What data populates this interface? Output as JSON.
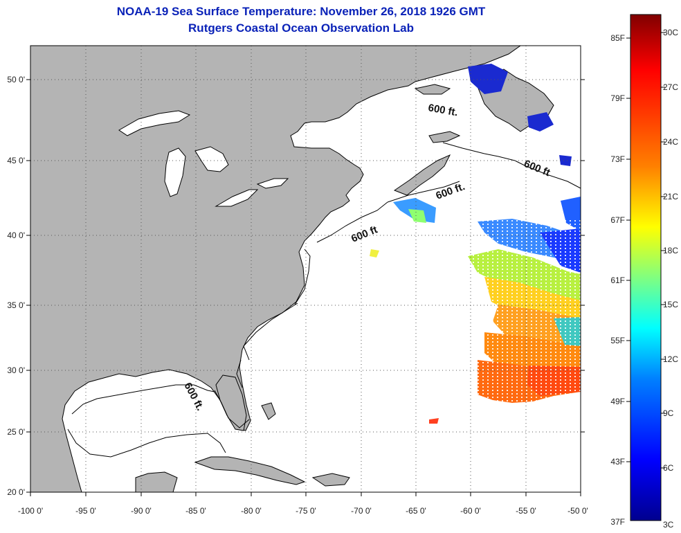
{
  "header": {
    "title": "NOAA-19 Sea Surface Temperature:  November 26, 2018 1926 GMT",
    "subtitle": "Rutgers Coastal Ocean Observation Lab"
  },
  "map": {
    "lon_ticks": [
      "-100 0'",
      "-95 0'",
      "-90 0'",
      "-85 0'",
      "-80 0'",
      "-75 0'",
      "-70 0'",
      "-65 0'",
      "-60 0'",
      "-55 0'",
      "-50 0'"
    ],
    "lat_ticks": [
      "50 0'",
      "45 0'",
      "40 0'",
      "35 0'",
      "30 0'",
      "25 0'",
      "20 0'"
    ],
    "contour_labels": [
      "600 ft.",
      "600 ft",
      "600 ft.",
      "600 ft",
      "600 ft."
    ],
    "colors": {
      "land": "#b4b4b4",
      "ocean": "#ffffff",
      "coast": "#000000"
    }
  },
  "colorbar": {
    "fahrenheit": [
      "85F",
      "79F",
      "73F",
      "67F",
      "61F",
      "55F",
      "49F",
      "43F",
      "37F"
    ],
    "celsius": [
      "30C",
      "27C",
      "24C",
      "21C",
      "18C",
      "15C",
      "12C",
      "9C",
      "6C",
      "3C"
    ],
    "colors": [
      "#800000",
      "#ff0000",
      "#ff8000",
      "#ffff00",
      "#80ff80",
      "#00ffff",
      "#0080ff",
      "#0000ff",
      "#00008f"
    ]
  }
}
